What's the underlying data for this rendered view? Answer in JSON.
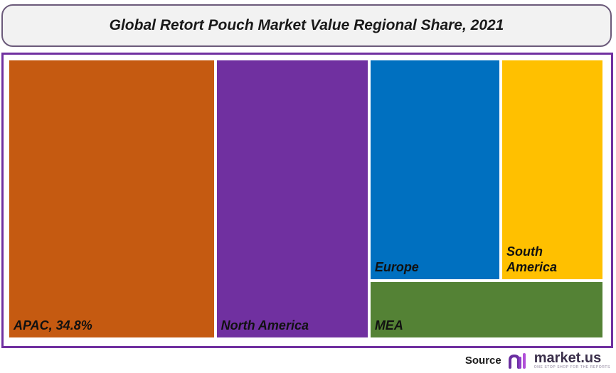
{
  "chart_data": {
    "type": "treemap",
    "title": "Global Retort Pouch Market Value Regional Share, 2021",
    "items": [
      {
        "name": "APAC",
        "label": "APAC, 34.8%",
        "value": 34.8,
        "color": "#c55a11"
      },
      {
        "name": "North America",
        "label": "North America",
        "value": 25.8,
        "color": "#7030a0"
      },
      {
        "name": "Europe",
        "label": "Europe",
        "value": 17.5,
        "color": "#0070c0"
      },
      {
        "name": "South America",
        "label": "South\nAmerica",
        "value": 13.7,
        "color": "#ffc000"
      },
      {
        "name": "MEA",
        "label": "MEA",
        "value": 8.2,
        "color": "#548235"
      }
    ]
  },
  "source": {
    "label": "Source",
    "brand": "market.us",
    "tagline": "ONE STOP SHOP FOR THE REPORTS",
    "logo_icon": "market-us-logo-icon"
  }
}
